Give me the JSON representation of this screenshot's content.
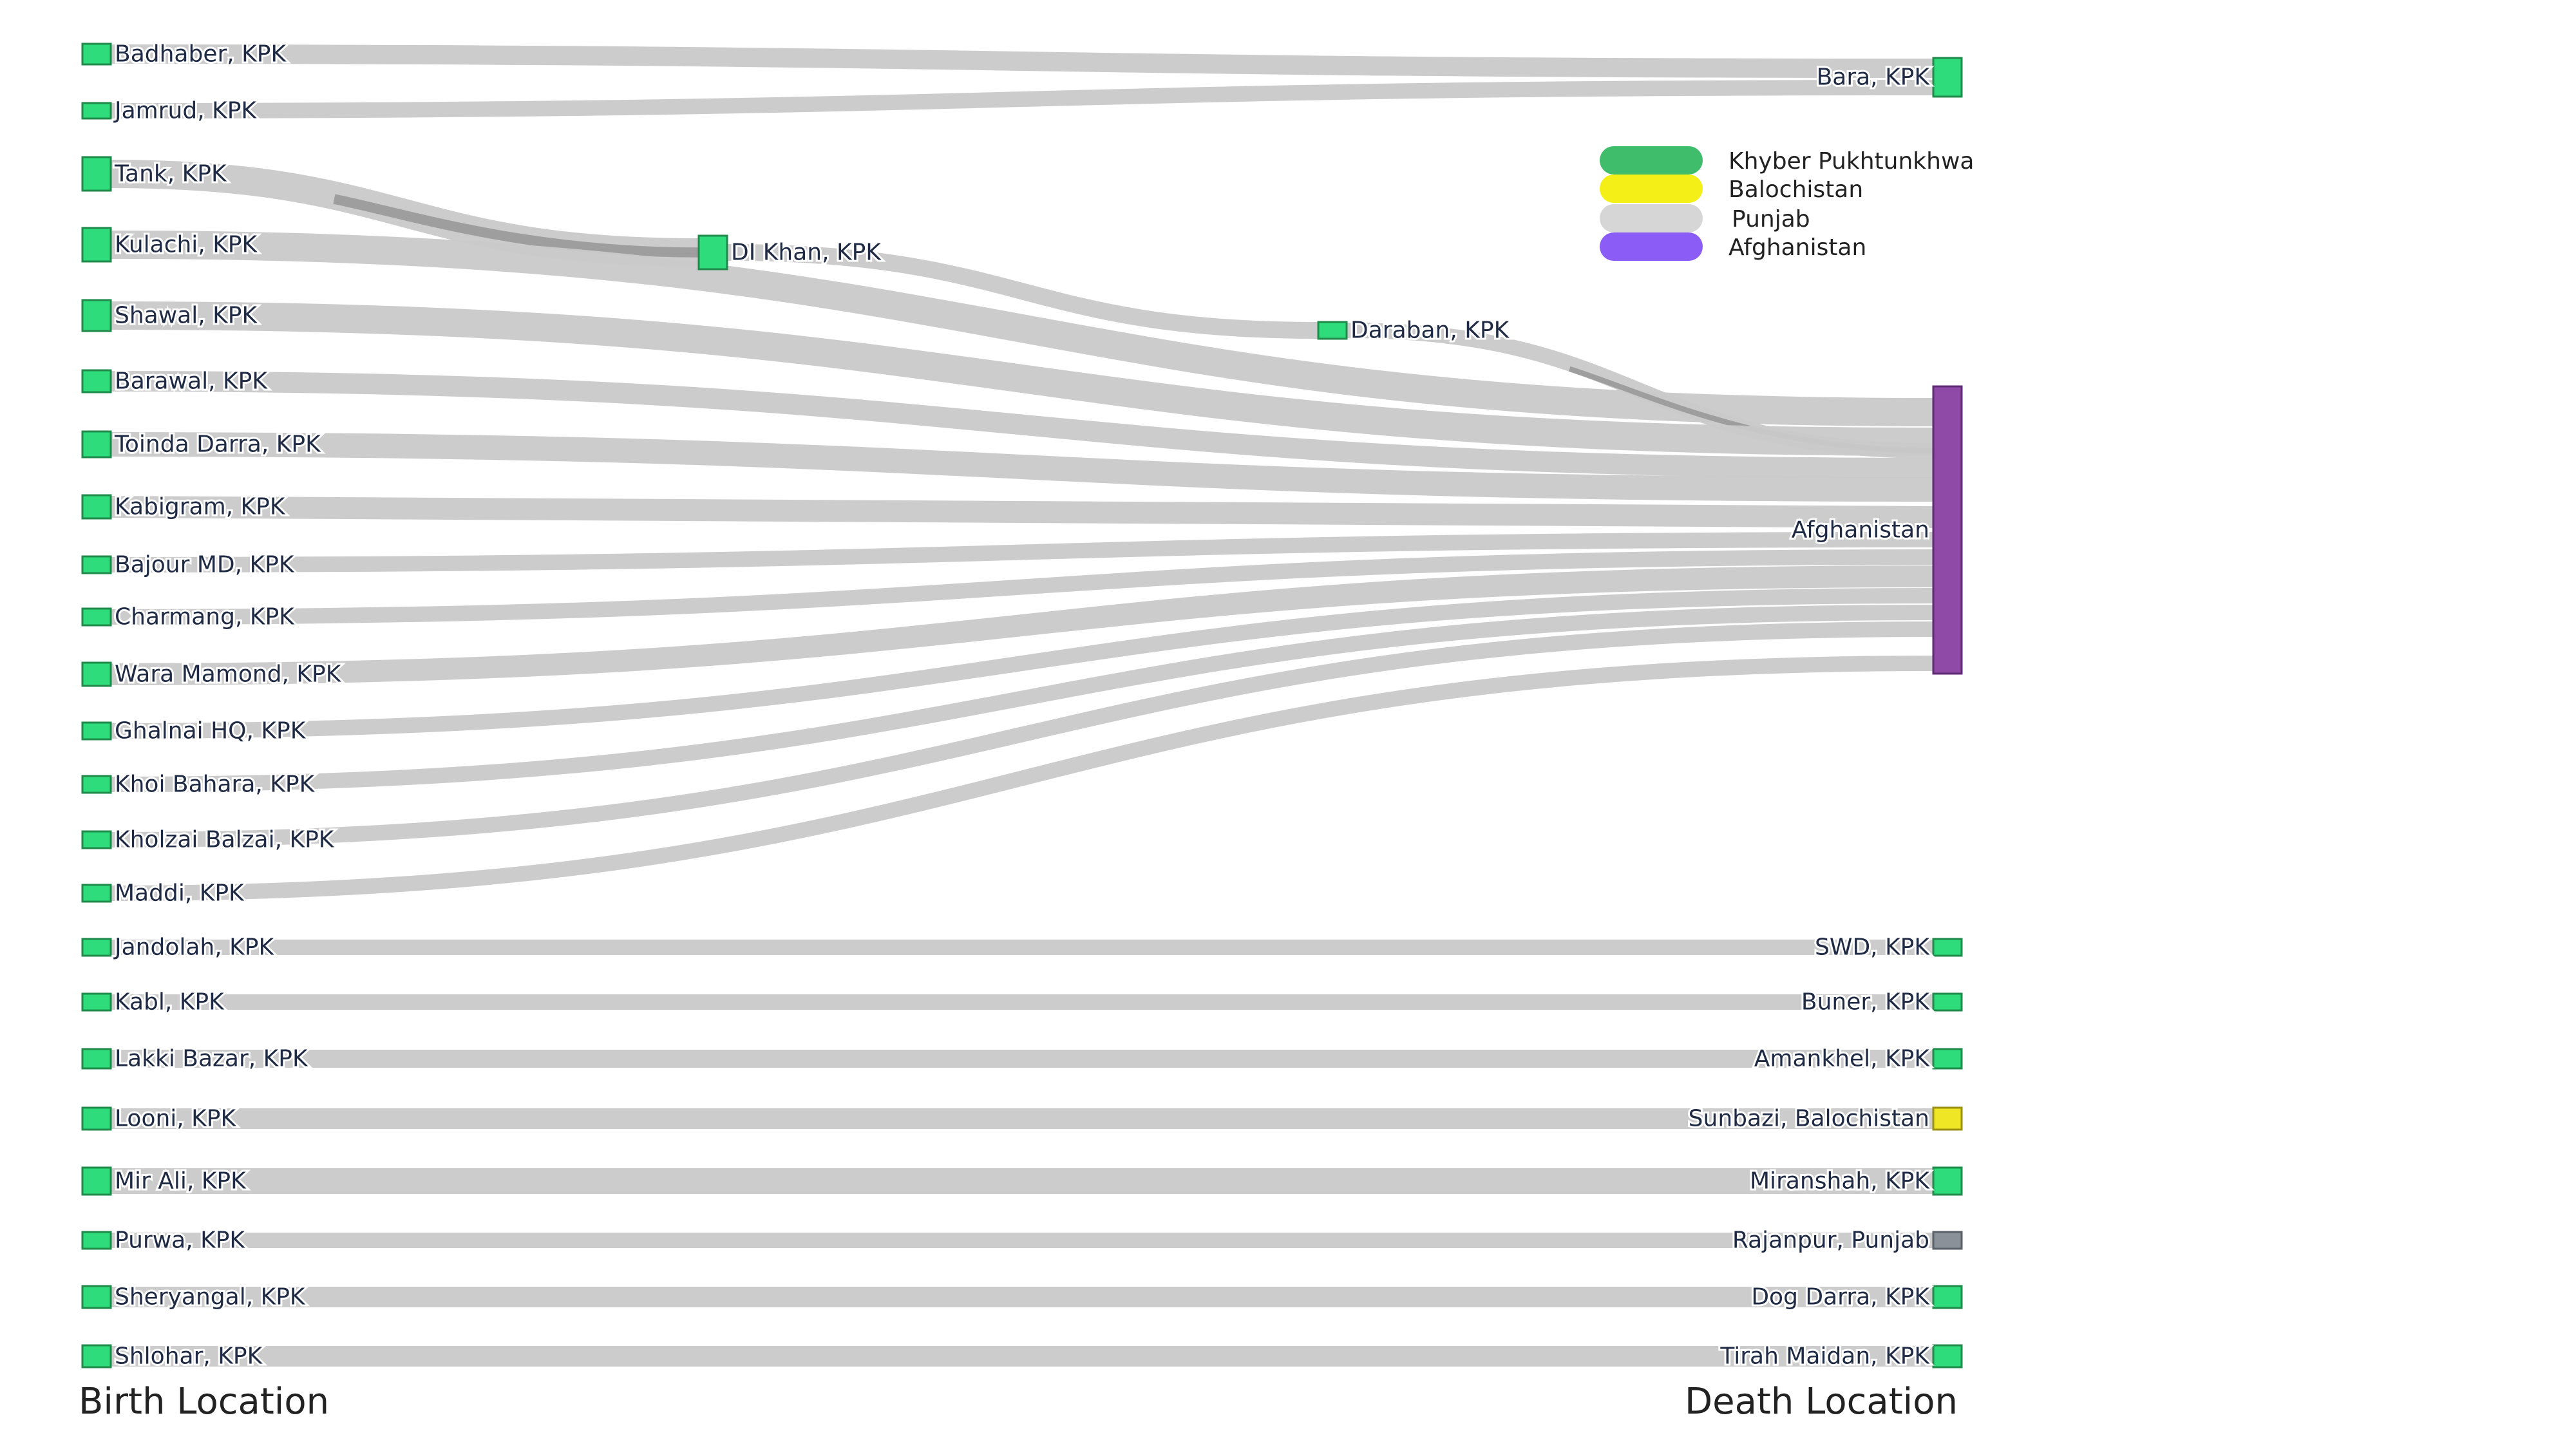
{
  "colors": {
    "Khyber Pukhtunkhwa": "#2edc7c",
    "Khyber Pukhtunkhwa_stroke": "#1f8a4a",
    "Balochistan": "#efe625",
    "Balochistan_stroke": "#9a8f10",
    "Punjab": "#8a9199",
    "Punjab_stroke": "#5a6068",
    "Afghanistan": "#8e4aa6",
    "Afghanistan_stroke": "#5e2a73",
    "link": "#c9c9c9",
    "link_dark": "#8f8f8f"
  },
  "legend": {
    "entries": [
      {
        "label": "Khyber Pukhtunkhwa",
        "color": "#3fbd6b"
      },
      {
        "label": "Balochistan",
        "color": "#f4ef16"
      },
      {
        "label": "Punjab",
        "color": "#d6d6d6"
      },
      {
        "label": "Afghanistan",
        "color": "#8b5cf6"
      }
    ]
  },
  "captions": {
    "left": "Birth Location",
    "right": "Death Location"
  },
  "diagram": {
    "nodes": [
      {
        "id": "badhaber",
        "label": "Badhaber, KPK",
        "region": "Khyber Pukhtunkhwa",
        "stage": "birth"
      },
      {
        "id": "jamrud",
        "label": "Jamrud, KPK",
        "region": "Khyber Pukhtunkhwa",
        "stage": "birth"
      },
      {
        "id": "tank",
        "label": "Tank, KPK",
        "region": "Khyber Pukhtunkhwa",
        "stage": "birth"
      },
      {
        "id": "kulachi",
        "label": "Kulachi, KPK",
        "region": "Khyber Pukhtunkhwa",
        "stage": "birth"
      },
      {
        "id": "shawal",
        "label": "Shawal, KPK",
        "region": "Khyber Pukhtunkhwa",
        "stage": "birth"
      },
      {
        "id": "barawal",
        "label": "Barawal, KPK",
        "region": "Khyber Pukhtunkhwa",
        "stage": "birth"
      },
      {
        "id": "toinda",
        "label": "Toinda Darra, KPK",
        "region": "Khyber Pukhtunkhwa",
        "stage": "birth"
      },
      {
        "id": "kabigram",
        "label": "Kabigram, KPK",
        "region": "Khyber Pukhtunkhwa",
        "stage": "birth"
      },
      {
        "id": "bajour",
        "label": "Bajour MD, KPK",
        "region": "Khyber Pukhtunkhwa",
        "stage": "birth"
      },
      {
        "id": "charmang",
        "label": "Charmang, KPK",
        "region": "Khyber Pukhtunkhwa",
        "stage": "birth"
      },
      {
        "id": "wara",
        "label": "Wara Mamond, KPK",
        "region": "Khyber Pukhtunkhwa",
        "stage": "birth"
      },
      {
        "id": "ghalnai",
        "label": "Ghalnai HQ, KPK",
        "region": "Khyber Pukhtunkhwa",
        "stage": "birth"
      },
      {
        "id": "khoi",
        "label": "Khoi Bahara, KPK",
        "region": "Khyber Pukhtunkhwa",
        "stage": "birth"
      },
      {
        "id": "kholzai",
        "label": "Kholzai Balzai, KPK",
        "region": "Khyber Pukhtunkhwa",
        "stage": "birth"
      },
      {
        "id": "maddi",
        "label": "Maddi, KPK",
        "region": "Khyber Pukhtunkhwa",
        "stage": "birth"
      },
      {
        "id": "jandolah",
        "label": "Jandolah, KPK",
        "region": "Khyber Pukhtunkhwa",
        "stage": "birth"
      },
      {
        "id": "kabl",
        "label": "Kabl, KPK",
        "region": "Khyber Pukhtunkhwa",
        "stage": "birth"
      },
      {
        "id": "lakki",
        "label": "Lakki Bazar, KPK",
        "region": "Khyber Pukhtunkhwa",
        "stage": "birth"
      },
      {
        "id": "looni",
        "label": "Looni, KPK",
        "region": "Khyber Pukhtunkhwa",
        "stage": "birth"
      },
      {
        "id": "mirali",
        "label": "Mir Ali, KPK",
        "region": "Khyber Pukhtunkhwa",
        "stage": "birth"
      },
      {
        "id": "purwa",
        "label": "Purwa, KPK",
        "region": "Khyber Pukhtunkhwa",
        "stage": "birth"
      },
      {
        "id": "sheryangal",
        "label": "Sheryangal, KPK",
        "region": "Khyber Pukhtunkhwa",
        "stage": "birth"
      },
      {
        "id": "shlohar",
        "label": "Shlohar, KPK",
        "region": "Khyber Pukhtunkhwa",
        "stage": "birth"
      },
      {
        "id": "dikhan",
        "label": "DI Khan, KPK",
        "region": "Khyber Pukhtunkhwa",
        "stage": "transit"
      },
      {
        "id": "daraban",
        "label": "Daraban, KPK",
        "region": "Khyber Pukhtunkhwa",
        "stage": "transit"
      },
      {
        "id": "bara",
        "label": "Bara, KPK",
        "region": "Khyber Pukhtunkhwa",
        "stage": "death"
      },
      {
        "id": "afghanistan",
        "label": "Afghanistan",
        "region": "Afghanistan",
        "stage": "death"
      },
      {
        "id": "swd",
        "label": "SWD, KPK",
        "region": "Khyber Pukhtunkhwa",
        "stage": "death"
      },
      {
        "id": "buner",
        "label": "Buner, KPK",
        "region": "Khyber Pukhtunkhwa",
        "stage": "death"
      },
      {
        "id": "amankhel",
        "label": "Amankhel, KPK",
        "region": "Khyber Pukhtunkhwa",
        "stage": "death"
      },
      {
        "id": "sunbazi",
        "label": "Sunbazi, Balochistan",
        "region": "Balochistan",
        "stage": "death"
      },
      {
        "id": "miranshah",
        "label": "Miranshah, KPK",
        "region": "Khyber Pukhtunkhwa",
        "stage": "death"
      },
      {
        "id": "rajanpur",
        "label": "Rajanpur, Punjab",
        "region": "Punjab",
        "stage": "death"
      },
      {
        "id": "dogdarra",
        "label": "Dog Darra, KPK",
        "region": "Khyber Pukhtunkhwa",
        "stage": "death"
      },
      {
        "id": "tirah",
        "label": "Tirah Maidan, KPK",
        "region": "Khyber Pukhtunkhwa",
        "stage": "death"
      }
    ],
    "links": [
      {
        "source": "badhaber",
        "target": "bara"
      },
      {
        "source": "jamrud",
        "target": "bara"
      },
      {
        "source": "tank",
        "target": "dikhan"
      },
      {
        "source": "kulachi",
        "target": "afghanistan"
      },
      {
        "source": "dikhan",
        "target": "daraban"
      },
      {
        "source": "daraban",
        "target": "afghanistan"
      },
      {
        "source": "shawal",
        "target": "afghanistan"
      },
      {
        "source": "barawal",
        "target": "afghanistan"
      },
      {
        "source": "toinda",
        "target": "afghanistan"
      },
      {
        "source": "kabigram",
        "target": "afghanistan"
      },
      {
        "source": "bajour",
        "target": "afghanistan"
      },
      {
        "source": "charmang",
        "target": "afghanistan"
      },
      {
        "source": "wara",
        "target": "afghanistan"
      },
      {
        "source": "ghalnai",
        "target": "afghanistan"
      },
      {
        "source": "khoi",
        "target": "afghanistan"
      },
      {
        "source": "kholzai",
        "target": "afghanistan"
      },
      {
        "source": "maddi",
        "target": "afghanistan"
      },
      {
        "source": "jandolah",
        "target": "swd"
      },
      {
        "source": "kabl",
        "target": "buner"
      },
      {
        "source": "lakki",
        "target": "amankhel"
      },
      {
        "source": "looni",
        "target": "sunbazi"
      },
      {
        "source": "mirali",
        "target": "miranshah"
      },
      {
        "source": "purwa",
        "target": "rajanpur"
      },
      {
        "source": "sheryangal",
        "target": "dogdarra"
      },
      {
        "source": "shlohar",
        "target": "tirah"
      }
    ]
  }
}
